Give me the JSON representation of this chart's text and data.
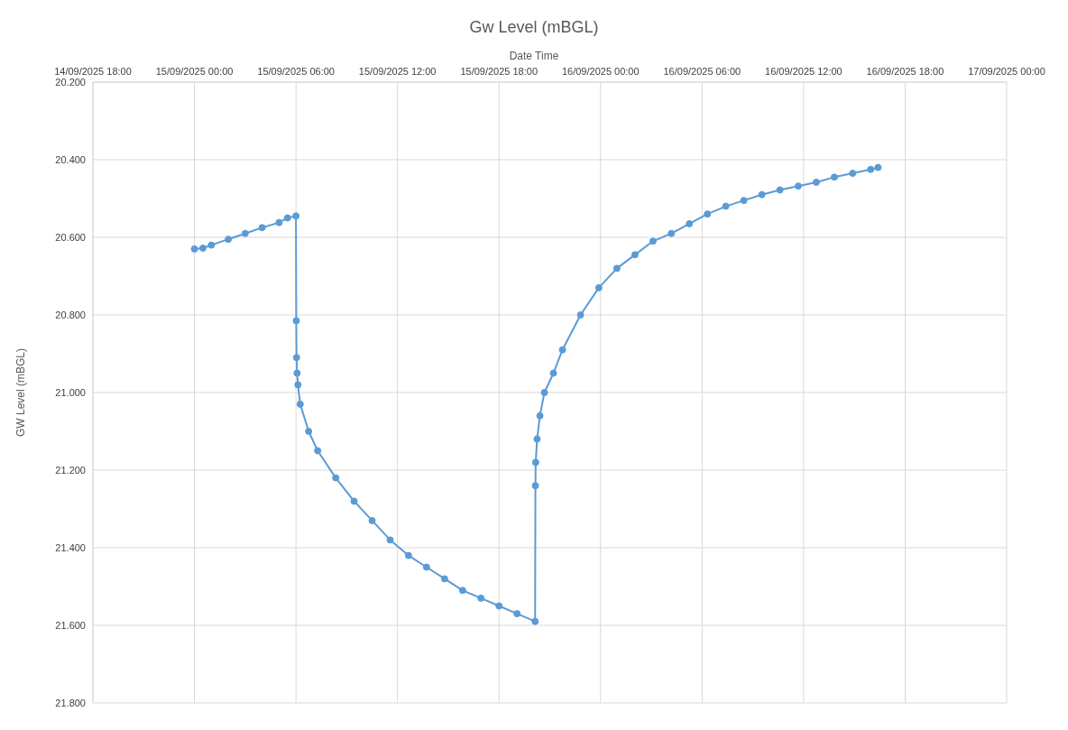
{
  "chart_data": {
    "type": "line",
    "title": "Gw Level (mBGL)",
    "xlabel": "Date Time",
    "ylabel": "GW Level (mBGL)",
    "x": [
      "2025-09-15T00:00",
      "2025-09-15T00:30",
      "2025-09-15T01:00",
      "2025-09-15T02:00",
      "2025-09-15T03:00",
      "2025-09-15T04:00",
      "2025-09-15T05:00",
      "2025-09-15T05:30",
      "2025-09-15T06:00",
      "2025-09-15T06:01",
      "2025-09-15T06:02",
      "2025-09-15T06:04",
      "2025-09-15T06:07",
      "2025-09-15T06:15",
      "2025-09-15T06:45",
      "2025-09-15T07:17",
      "2025-09-15T08:21",
      "2025-09-15T09:26",
      "2025-09-15T10:30",
      "2025-09-15T11:34",
      "2025-09-15T12:39",
      "2025-09-15T13:43",
      "2025-09-15T14:47",
      "2025-09-15T15:51",
      "2025-09-15T16:56",
      "2025-09-15T18:00",
      "2025-09-15T19:04",
      "2025-09-15T20:08",
      "2025-09-15T20:09",
      "2025-09-15T20:10",
      "2025-09-15T20:15",
      "2025-09-15T20:25",
      "2025-09-15T20:41",
      "2025-09-15T21:13",
      "2025-09-15T21:45",
      "2025-09-15T22:49",
      "2025-09-15T23:54",
      "2025-09-16T00:58",
      "2025-09-16T02:02",
      "2025-09-16T03:06",
      "2025-09-16T04:11",
      "2025-09-16T05:15",
      "2025-09-16T06:19",
      "2025-09-16T07:24",
      "2025-09-16T08:28",
      "2025-09-16T09:32",
      "2025-09-16T10:36",
      "2025-09-16T11:41",
      "2025-09-16T12:45",
      "2025-09-16T13:49",
      "2025-09-16T14:54",
      "2025-09-16T15:58",
      "2025-09-16T16:24"
    ],
    "series": [
      {
        "color": "#5b9bd5",
        "values": [
          20.63,
          20.628,
          20.62,
          20.605,
          20.59,
          20.575,
          20.562,
          20.55,
          20.545,
          20.815,
          20.91,
          20.95,
          20.98,
          21.03,
          21.1,
          21.15,
          21.22,
          21.28,
          21.33,
          21.38,
          21.42,
          21.45,
          21.48,
          21.51,
          21.53,
          21.55,
          21.57,
          21.59,
          21.24,
          21.18,
          21.12,
          21.06,
          21.0,
          20.95,
          20.89,
          20.8,
          20.73,
          20.68,
          20.645,
          20.61,
          20.59,
          20.565,
          20.54,
          20.52,
          20.505,
          20.49,
          20.478,
          20.468,
          20.458,
          20.445,
          20.435,
          20.425,
          20.42
        ]
      }
    ],
    "xlim": [
      "2025-09-14T18:00",
      "2025-09-17T00:00"
    ],
    "xticks": [
      {
        "value": "2025-09-14T18:00",
        "label": "14/09/2025 18:00"
      },
      {
        "value": "2025-09-15T00:00",
        "label": "15/09/2025 00:00"
      },
      {
        "value": "2025-09-15T06:00",
        "label": "15/09/2025 06:00"
      },
      {
        "value": "2025-09-15T12:00",
        "label": "15/09/2025 12:00"
      },
      {
        "value": "2025-09-15T18:00",
        "label": "15/09/2025 18:00"
      },
      {
        "value": "2025-09-16T00:00",
        "label": "16/09/2025 00:00"
      },
      {
        "value": "2025-09-16T06:00",
        "label": "16/09/2025 06:00"
      },
      {
        "value": "2025-09-16T12:00",
        "label": "16/09/2025 12:00"
      },
      {
        "value": "2025-09-16T18:00",
        "label": "16/09/2025 18:00"
      },
      {
        "value": "2025-09-17T00:00",
        "label": "17/09/2025 00:00"
      }
    ],
    "ylim": [
      21.8,
      20.2
    ],
    "yticks": [
      {
        "value": 20.2,
        "label": "20.200"
      },
      {
        "value": 20.4,
        "label": "20.400"
      },
      {
        "value": 20.6,
        "label": "20.600"
      },
      {
        "value": 20.8,
        "label": "20.800"
      },
      {
        "value": 21.0,
        "label": "21.000"
      },
      {
        "value": 21.2,
        "label": "21.200"
      },
      {
        "value": 21.4,
        "label": "21.400"
      },
      {
        "value": 21.6,
        "label": "21.600"
      },
      {
        "value": 21.8,
        "label": "21.800"
      }
    ],
    "grid": true,
    "marker": "circle",
    "line_style": "solid"
  }
}
